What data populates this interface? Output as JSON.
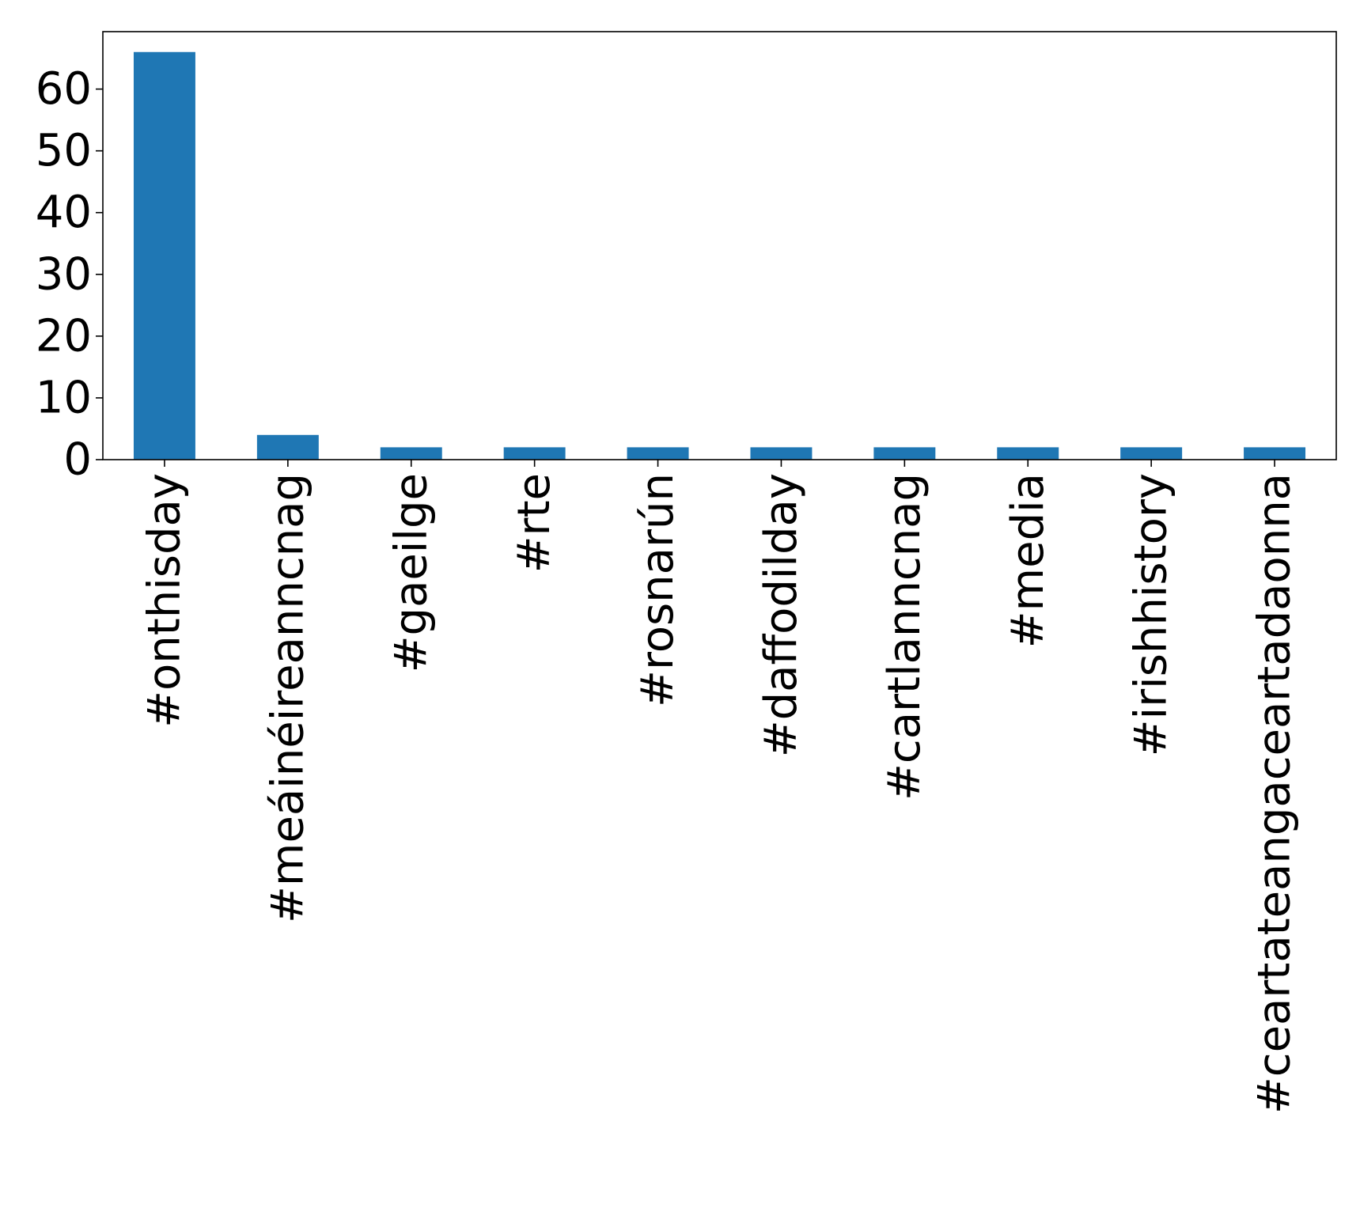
{
  "chart_data": {
    "type": "bar",
    "title": "",
    "xlabel": "",
    "ylabel": "",
    "categories": [
      "#onthisday",
      "#meáinéireanncnag",
      "#gaeilge",
      "#rte",
      "#rosnarún",
      "#daffodilday",
      "#cartlanncnag",
      "#media",
      "#irishhistory",
      "#ceartateangaceartadaonna"
    ],
    "values": [
      66,
      4,
      2,
      2,
      2,
      2,
      2,
      2,
      2,
      2
    ],
    "ylim": [
      0,
      69.3
    ],
    "yticks": [
      0,
      10,
      20,
      30,
      40,
      50,
      60
    ],
    "grid": false,
    "legend": "none",
    "bar_color": "#1f77b4"
  }
}
